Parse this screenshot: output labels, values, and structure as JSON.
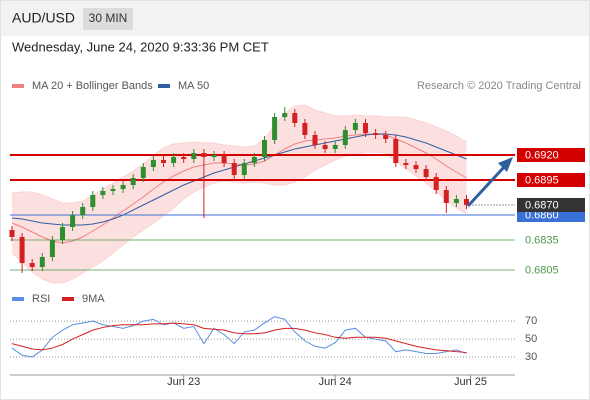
{
  "header": {
    "symbol": "AUD/USD",
    "timeframe": "30 MIN",
    "datetime": "Wednesday, June 24, 2020 9:33:36 PM CET"
  },
  "chart_data": [
    {
      "type": "candlestick",
      "credit": "Research © 2020 Trading Central",
      "up_color": "#2f8f2f",
      "down_color": "#d42020",
      "categories": [
        null,
        null,
        null,
        null,
        null,
        null,
        null,
        null,
        null,
        null,
        null,
        null,
        null,
        null,
        null,
        null,
        null,
        "Jun 23",
        null,
        null,
        null,
        null,
        null,
        null,
        null,
        null,
        null,
        null,
        null,
        null,
        null,
        null,
        "Jun 24",
        null,
        null,
        null,
        null,
        null,
        null,
        null,
        null,
        null,
        null,
        null,
        null,
        "Jun 25"
      ],
      "open": [
        0.6845,
        0.6838,
        0.6812,
        0.6808,
        0.6818,
        0.6835,
        0.6848,
        0.686,
        0.6868,
        0.688,
        0.6884,
        0.6886,
        0.689,
        0.6897,
        0.6908,
        0.6915,
        0.6912,
        0.6918,
        0.6916,
        0.6922,
        0.6918,
        0.692,
        0.6912,
        0.69,
        0.6912,
        0.6918,
        0.6935,
        0.6958,
        0.6962,
        0.6952,
        0.694,
        0.693,
        0.6926,
        0.693,
        0.6945,
        0.6952,
        0.6942,
        0.694,
        0.6936,
        0.6912,
        0.691,
        0.6906,
        0.6898,
        0.6885,
        0.6872,
        0.6876
      ],
      "high": [
        0.6849,
        0.6842,
        0.6816,
        0.6822,
        0.6839,
        0.6852,
        0.6864,
        0.6872,
        0.6884,
        0.6888,
        0.689,
        0.6894,
        0.6901,
        0.6912,
        0.6919,
        0.6919,
        0.6922,
        0.6922,
        0.6926,
        0.6926,
        0.6924,
        0.6924,
        0.6916,
        0.6916,
        0.6922,
        0.6939,
        0.6962,
        0.6968,
        0.6966,
        0.6956,
        0.6944,
        0.6934,
        0.6934,
        0.6949,
        0.6956,
        0.6956,
        0.6946,
        0.6944,
        0.694,
        0.6916,
        0.6914,
        0.691,
        0.6902,
        0.6889,
        0.688,
        0.688
      ],
      "low": [
        0.6834,
        0.6802,
        0.6804,
        0.6804,
        0.6814,
        0.6831,
        0.6844,
        0.6856,
        0.6864,
        0.6876,
        0.688,
        0.6882,
        0.6886,
        0.6893,
        0.6904,
        0.6908,
        0.6908,
        0.6912,
        0.6912,
        0.6857,
        0.6914,
        0.6908,
        0.6896,
        0.6896,
        0.6908,
        0.6914,
        0.6931,
        0.6954,
        0.6948,
        0.6936,
        0.6926,
        0.6922,
        0.6922,
        0.6926,
        0.6941,
        0.6938,
        0.6936,
        0.6932,
        0.6908,
        0.6906,
        0.6902,
        0.6894,
        0.6881,
        0.6862,
        0.6868,
        0.6866
      ],
      "close": [
        0.6838,
        0.6812,
        0.6808,
        0.6818,
        0.6835,
        0.6848,
        0.686,
        0.6868,
        0.688,
        0.6884,
        0.6886,
        0.689,
        0.6897,
        0.6908,
        0.6915,
        0.6912,
        0.6918,
        0.6916,
        0.6922,
        0.6918,
        0.692,
        0.6912,
        0.69,
        0.6912,
        0.6918,
        0.6935,
        0.6958,
        0.6962,
        0.6952,
        0.694,
        0.693,
        0.6926,
        0.693,
        0.6945,
        0.6952,
        0.6942,
        0.694,
        0.6936,
        0.6912,
        0.691,
        0.6906,
        0.6898,
        0.6885,
        0.6872,
        0.6876,
        0.687
      ],
      "series": [
        {
          "name": "MA 20 + Bollinger Bands",
          "color": "#f08080",
          "band_color": "#fbd3d3",
          "values": [
            0.6852,
            0.6848,
            0.6843,
            0.6838,
            0.6834,
            0.6832,
            0.6834,
            0.6838,
            0.6844,
            0.685,
            0.6857,
            0.6864,
            0.6871,
            0.6878,
            0.6886,
            0.6893,
            0.6899,
            0.6904,
            0.6908,
            0.691,
            0.6912,
            0.6912,
            0.6911,
            0.691,
            0.6911,
            0.6914,
            0.692,
            0.6926,
            0.6931,
            0.6934,
            0.6935,
            0.6936,
            0.6937,
            0.6939,
            0.694,
            0.6941,
            0.6941,
            0.694,
            0.6936,
            0.6932,
            0.6927,
            0.6922,
            0.6916,
            0.6909,
            0.6903,
            0.6897
          ],
          "upper": [
            0.6882,
            0.6883,
            0.6883,
            0.688,
            0.6876,
            0.6872,
            0.6872,
            0.6874,
            0.688,
            0.6886,
            0.6892,
            0.6898,
            0.6904,
            0.6911,
            0.692,
            0.6927,
            0.6931,
            0.6932,
            0.6933,
            0.6932,
            0.6932,
            0.693,
            0.6929,
            0.6928,
            0.6929,
            0.6936,
            0.695,
            0.6962,
            0.6969,
            0.697,
            0.6965,
            0.6962,
            0.6959,
            0.6959,
            0.696,
            0.6959,
            0.6959,
            0.6958,
            0.6958,
            0.6958,
            0.6955,
            0.6952,
            0.6948,
            0.6944,
            0.6939,
            0.6933
          ],
          "lower": [
            0.6822,
            0.6813,
            0.6803,
            0.6796,
            0.6792,
            0.6792,
            0.6796,
            0.6802,
            0.6808,
            0.6814,
            0.6822,
            0.683,
            0.6838,
            0.6845,
            0.6852,
            0.6859,
            0.6867,
            0.6876,
            0.6883,
            0.6888,
            0.6892,
            0.6894,
            0.6893,
            0.6892,
            0.6893,
            0.6892,
            0.689,
            0.689,
            0.6893,
            0.6898,
            0.6905,
            0.691,
            0.6915,
            0.6919,
            0.692,
            0.6923,
            0.6923,
            0.6922,
            0.6914,
            0.6906,
            0.6899,
            0.6892,
            0.6884,
            0.6874,
            0.6867,
            0.6861
          ]
        },
        {
          "name": "MA 50",
          "color": "#2f5f9f",
          "values": [
            0.6857,
            0.6856,
            0.6854,
            0.6852,
            0.6851,
            0.685,
            0.685,
            0.685,
            0.6851,
            0.6853,
            0.6856,
            0.686,
            0.6865,
            0.687,
            0.6875,
            0.688,
            0.6885,
            0.689,
            0.6894,
            0.6898,
            0.6902,
            0.6905,
            0.6908,
            0.6911,
            0.6914,
            0.6917,
            0.692,
            0.6923,
            0.6926,
            0.6928,
            0.693,
            0.6932,
            0.6934,
            0.6936,
            0.6938,
            0.694,
            0.6941,
            0.6941,
            0.694,
            0.6938,
            0.6935,
            0.6932,
            0.6928,
            0.6924,
            0.692,
            0.6916
          ]
        }
      ],
      "ylim": [
        0.679,
        0.698
      ],
      "levels": [
        {
          "value": 0.692,
          "label": "0.6920",
          "color": "#d40000",
          "style": "box"
        },
        {
          "value": 0.6895,
          "label": "0.6895",
          "color": "#d40000",
          "style": "box"
        },
        {
          "value": 0.686,
          "label": "0.6860",
          "color": "#3a6fd8",
          "style": "box"
        },
        {
          "value": 0.6835,
          "label": "0.6835",
          "color": "#4d9a4d",
          "style": "text"
        },
        {
          "value": 0.6805,
          "label": "0.6805",
          "color": "#4d9a4d",
          "style": "text"
        }
      ],
      "current": {
        "value": 0.687,
        "label": "0.6870",
        "color": "#333333"
      }
    },
    {
      "type": "line",
      "series": [
        {
          "name": "RSI",
          "color": "#5b8ee0",
          "values": [
            40,
            32,
            30,
            38,
            52,
            60,
            66,
            68,
            70,
            66,
            64,
            62,
            65,
            70,
            72,
            66,
            68,
            62,
            64,
            45,
            62,
            55,
            45,
            58,
            60,
            68,
            75,
            72,
            58,
            48,
            42,
            40,
            46,
            60,
            62,
            52,
            50,
            48,
            36,
            38,
            36,
            34,
            34,
            36,
            38,
            34
          ]
        },
        {
          "name": "9MA",
          "color": "#d42020",
          "values": [
            45,
            42,
            39,
            38,
            40,
            44,
            50,
            55,
            60,
            63,
            65,
            66,
            66,
            66,
            67,
            67,
            68,
            67,
            66,
            62,
            61,
            60,
            57,
            56,
            56,
            57,
            60,
            62,
            62,
            60,
            57,
            55,
            52,
            51,
            52,
            52,
            52,
            51,
            48,
            45,
            42,
            40,
            38,
            37,
            36,
            35
          ]
        }
      ],
      "ylim": [
        10,
        88
      ],
      "yticks": [
        70,
        50,
        30
      ]
    }
  ]
}
